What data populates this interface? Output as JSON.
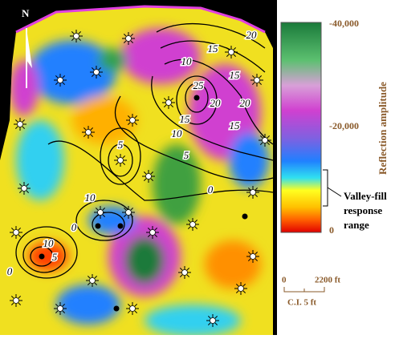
{
  "map": {
    "north": "N",
    "contour_labels": [
      "20",
      "15",
      "10",
      "15",
      "25",
      "20",
      "15",
      "20",
      "15",
      "10",
      "5",
      "0",
      "5",
      "10",
      "0",
      "10",
      "5",
      "0"
    ],
    "legend": {
      "title": "Reflection amplitude",
      "ticks": [
        "-40,000",
        "-20,000",
        "0"
      ],
      "range_note": [
        "Valley-fill",
        "response",
        "range"
      ]
    },
    "scale": {
      "start": "0",
      "end": "2200 ft",
      "interval": "C.I. 5 ft"
    }
  }
}
